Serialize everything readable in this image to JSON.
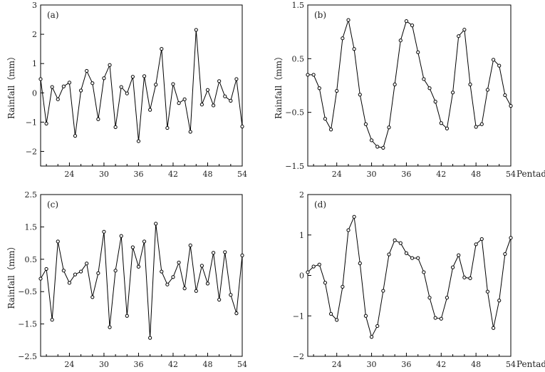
{
  "chart_data": [
    {
      "type": "line",
      "panel_label": "(a)",
      "xlabel": "",
      "ylabel": "Rainfall（mm）",
      "xlim": [
        19,
        54
      ],
      "ylim": [
        -2.5,
        3
      ],
      "xticks": [
        24,
        30,
        36,
        42,
        48,
        54
      ],
      "yticks": [
        -2,
        -1,
        0,
        1,
        2,
        3
      ],
      "grid": false,
      "series": [
        {
          "x": [
            19,
            20,
            21,
            22,
            23,
            24,
            25,
            26,
            27,
            28,
            29,
            30,
            31,
            32,
            33,
            34,
            35,
            36,
            37,
            38,
            39,
            40,
            41,
            42,
            43,
            44,
            45,
            46,
            47,
            48,
            49,
            50,
            51,
            52,
            53,
            54
          ],
          "values": [
            0.47,
            -1.05,
            0.2,
            -0.22,
            0.22,
            0.35,
            -1.47,
            0.08,
            0.75,
            0.33,
            -0.9,
            0.5,
            0.95,
            -1.17,
            0.2,
            -0.02,
            0.55,
            -1.65,
            0.57,
            -0.58,
            0.28,
            1.5,
            -1.2,
            0.3,
            -0.35,
            -0.22,
            -1.33,
            2.15,
            -0.4,
            0.1,
            -0.43,
            0.4,
            -0.12,
            -0.27,
            0.47,
            -1.15
          ]
        }
      ]
    },
    {
      "type": "line",
      "panel_label": "(b)",
      "xlabel": "Pentad",
      "ylabel": "Rainfall（mm）",
      "xlim": [
        19,
        54
      ],
      "ylim": [
        -1.5,
        1.5
      ],
      "xticks": [
        24,
        30,
        36,
        42,
        48,
        54
      ],
      "yticks": [
        -1.5,
        -0.5,
        0.5,
        1.5
      ],
      "grid": false,
      "series": [
        {
          "x": [
            19,
            20,
            21,
            22,
            23,
            24,
            25,
            26,
            27,
            28,
            29,
            30,
            31,
            32,
            33,
            34,
            35,
            36,
            37,
            38,
            39,
            40,
            41,
            42,
            43,
            44,
            45,
            46,
            47,
            48,
            49,
            50,
            51,
            52,
            53,
            54
          ],
          "values": [
            0.2,
            0.2,
            -0.05,
            -0.62,
            -0.82,
            -0.1,
            0.88,
            1.22,
            0.68,
            -0.17,
            -0.72,
            -1.02,
            -1.14,
            -1.16,
            -0.78,
            0.02,
            0.84,
            1.2,
            1.12,
            0.62,
            0.12,
            -0.05,
            -0.3,
            -0.7,
            -0.8,
            -0.13,
            0.92,
            1.04,
            0.02,
            -0.77,
            -0.72,
            -0.08,
            0.48,
            0.37,
            -0.18,
            -0.38
          ]
        }
      ]
    },
    {
      "type": "line",
      "panel_label": "(c)",
      "xlabel": "",
      "ylabel": "Rainfall（mm）",
      "xlim": [
        19,
        54
      ],
      "ylim": [
        -2.5,
        2.5
      ],
      "xticks": [
        24,
        30,
        36,
        42,
        48,
        54
      ],
      "yticks": [
        -2.5,
        -1.5,
        -0.5,
        0.5,
        1.5,
        2.5
      ],
      "grid": false,
      "series": [
        {
          "x": [
            19,
            20,
            21,
            22,
            23,
            24,
            25,
            26,
            27,
            28,
            29,
            30,
            31,
            32,
            33,
            34,
            35,
            36,
            37,
            38,
            39,
            40,
            41,
            42,
            43,
            44,
            45,
            46,
            47,
            48,
            49,
            50,
            51,
            52,
            53,
            54
          ],
          "values": [
            -0.1,
            0.2,
            -1.37,
            1.05,
            0.15,
            -0.23,
            0.03,
            0.12,
            0.37,
            -0.67,
            0.07,
            1.35,
            -1.6,
            0.15,
            1.22,
            -1.25,
            0.87,
            0.27,
            1.05,
            -1.93,
            1.6,
            0.12,
            -0.28,
            -0.05,
            0.4,
            -0.4,
            0.93,
            -0.48,
            0.3,
            -0.25,
            0.7,
            -0.75,
            0.72,
            -0.6,
            -1.17,
            0.62
          ]
        }
      ]
    },
    {
      "type": "line",
      "panel_label": "(d)",
      "xlabel": "Pentad",
      "ylabel": "",
      "xlim": [
        19,
        54
      ],
      "ylim": [
        -2,
        2
      ],
      "xticks": [
        24,
        30,
        36,
        42,
        48,
        54
      ],
      "yticks": [
        -2,
        -1,
        0,
        1,
        2
      ],
      "grid": false,
      "series": [
        {
          "x": [
            19,
            20,
            21,
            22,
            23,
            24,
            25,
            26,
            27,
            28,
            29,
            30,
            31,
            32,
            33,
            34,
            35,
            36,
            37,
            38,
            39,
            40,
            41,
            42,
            43,
            44,
            45,
            46,
            47,
            48,
            49,
            50,
            51,
            52,
            53,
            54
          ],
          "values": [
            0.08,
            0.22,
            0.27,
            -0.18,
            -0.95,
            -1.1,
            -0.28,
            1.12,
            1.45,
            0.3,
            -1.0,
            -1.52,
            -1.25,
            -0.38,
            0.52,
            0.87,
            0.8,
            0.55,
            0.43,
            0.43,
            0.08,
            -0.55,
            -1.05,
            -1.07,
            -0.55,
            0.2,
            0.5,
            -0.05,
            -0.07,
            0.77,
            0.9,
            -0.4,
            -1.3,
            -0.62,
            0.53,
            0.93
          ]
        }
      ]
    }
  ]
}
